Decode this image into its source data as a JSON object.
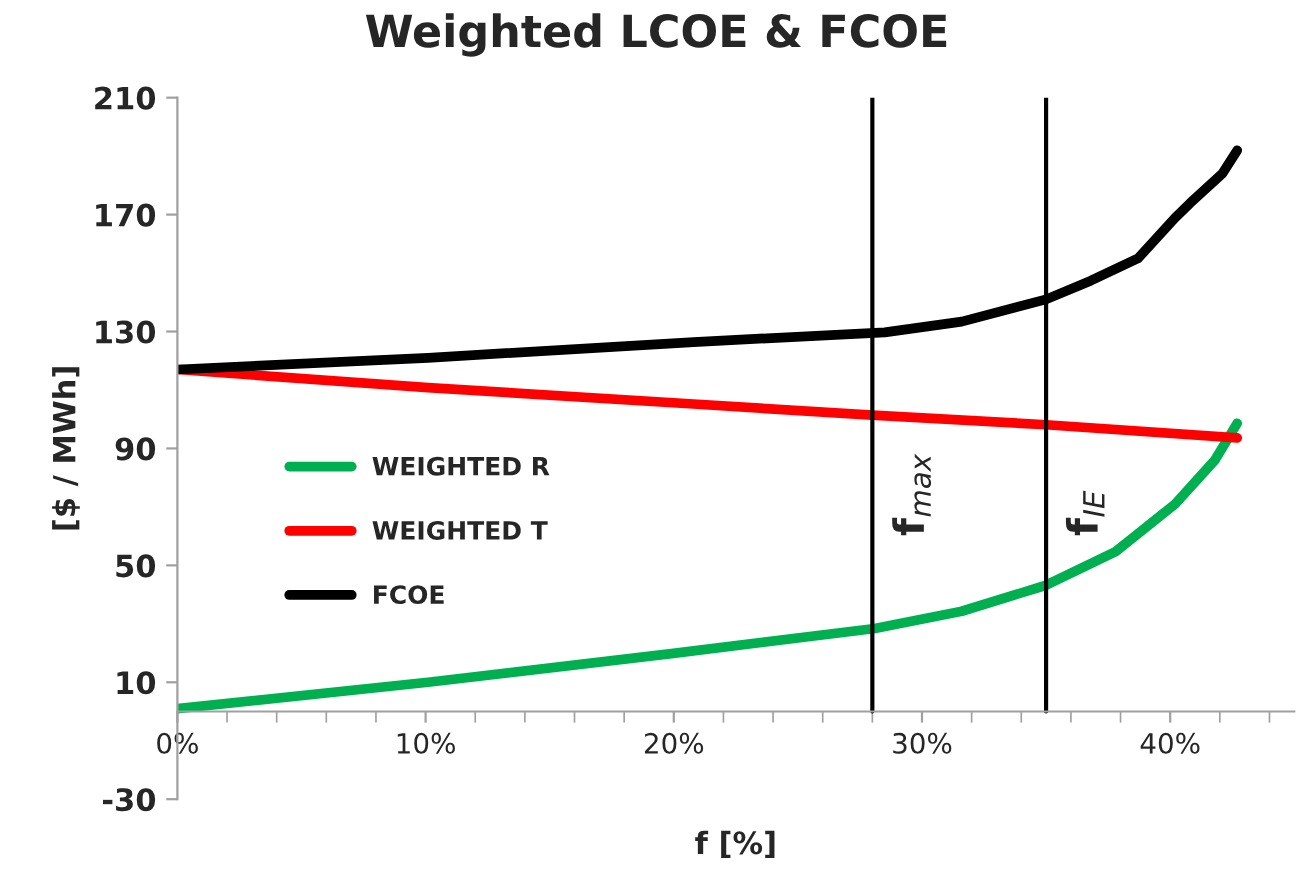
{
  "chart_data": {
    "type": "line",
    "title": "Weighted LCOE & FCOE",
    "xlabel": "f [%]",
    "ylabel": "[$ / MWh]",
    "series": [
      {
        "name": "WEIGHTED R",
        "color": "#00b050",
        "x": [
          0,
          10.1,
          19.9,
          28.1,
          31.6,
          35,
          37.8,
          40.2,
          41.8,
          42.7
        ],
        "values": [
          1,
          10,
          19.8,
          28.4,
          34.3,
          43.2,
          54.7,
          71,
          86,
          98.6
        ]
      },
      {
        "name": "WEIGHTED T",
        "color": "#ff0000",
        "x": [
          0,
          10.1,
          20.8,
          28,
          35,
          42.7
        ],
        "values": [
          117,
          110.8,
          105.2,
          101.4,
          98.1,
          93.6
        ]
      },
      {
        "name": "FCOE",
        "color": "#000000",
        "x": [
          0,
          10.1,
          20.8,
          28.5,
          31.6,
          35,
          36.8,
          38.7,
          40.2,
          40.8,
          42.1,
          42.7
        ],
        "values": [
          117,
          121,
          126.4,
          129.7,
          133.4,
          141,
          147.4,
          155,
          168.9,
          173.9,
          184,
          192
        ]
      }
    ],
    "xlim": [
      0,
      45
    ],
    "xticks": [
      {
        "value": 0,
        "label": "0%"
      },
      {
        "value": 10,
        "label": "10%"
      },
      {
        "value": 20,
        "label": "20%"
      },
      {
        "value": 30,
        "label": "30%"
      },
      {
        "value": 40,
        "label": "40%"
      }
    ],
    "ylim": [
      -30,
      210
    ],
    "yticks": [
      -30,
      10,
      50,
      90,
      130,
      170,
      210
    ],
    "ref_lines": [
      {
        "axis": "x",
        "value": 28,
        "label": "f$_{max}$",
        "color": "#000000"
      },
      {
        "axis": "x",
        "value": 35,
        "label": "f$_{IE}$",
        "color": "#000000"
      }
    ],
    "grid": false,
    "legend": "left",
    "marker": "none",
    "line_style": "solid"
  }
}
